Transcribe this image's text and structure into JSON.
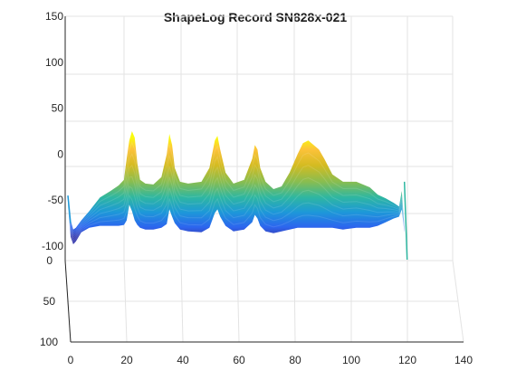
{
  "chart_data": {
    "type": "surface",
    "title": "ShapeLog Record SN828x-021",
    "colormap": "parula",
    "grid": true,
    "z_axis": {
      "ticks": [
        150,
        100,
        50,
        0,
        -50,
        -100
      ],
      "range": [
        -100,
        150
      ]
    },
    "y_axis": {
      "ticks": [
        0,
        50,
        100
      ],
      "range": [
        0,
        100
      ]
    },
    "x_axis": {
      "ticks": [
        0,
        20,
        40,
        60,
        80,
        100,
        120,
        140
      ],
      "range": [
        0,
        140
      ]
    },
    "profile": {
      "x": [
        0,
        1,
        2,
        3,
        5,
        8,
        12,
        16,
        19,
        21,
        22,
        23,
        24,
        25,
        26,
        27,
        29,
        32,
        35,
        37,
        38,
        39,
        40,
        42,
        45,
        50,
        53,
        55,
        56,
        57,
        59,
        62,
        66,
        69,
        70,
        71,
        72,
        74,
        77,
        80,
        83,
        86,
        88,
        90,
        92,
        94,
        96,
        99,
        103,
        108,
        113,
        116,
        119,
        122,
        124,
        125,
        126
      ],
      "top": [
        -50,
        -72,
        -82,
        -80,
        -72,
        -62,
        -47,
        -40,
        -34,
        -28,
        -5,
        15,
        25,
        18,
        -10,
        -28,
        -32,
        -33,
        -25,
        0,
        22,
        10,
        -15,
        -30,
        -32,
        -30,
        -15,
        15,
        20,
        5,
        -20,
        -32,
        -28,
        -5,
        10,
        5,
        -15,
        -30,
        -38,
        -35,
        -20,
        0,
        12,
        15,
        10,
        5,
        -5,
        -22,
        -30,
        -30,
        -36,
        -44,
        -48,
        -53,
        -57,
        -40,
        -80
      ],
      "bottom": [
        -55,
        -90,
        -98,
        -95,
        -85,
        -80,
        -78,
        -78,
        -78,
        -77,
        -72,
        -55,
        -62,
        -72,
        -77,
        -80,
        -82,
        -82,
        -80,
        -76,
        -60,
        -68,
        -75,
        -82,
        -84,
        -85,
        -80,
        -64,
        -60,
        -68,
        -78,
        -84,
        -82,
        -74,
        -66,
        -70,
        -78,
        -84,
        -86,
        -84,
        -82,
        -80,
        -80,
        -80,
        -80,
        -80,
        -80,
        -80,
        -82,
        -80,
        -80,
        -78,
        -74,
        -70,
        -68,
        -60,
        -85
      ]
    }
  }
}
